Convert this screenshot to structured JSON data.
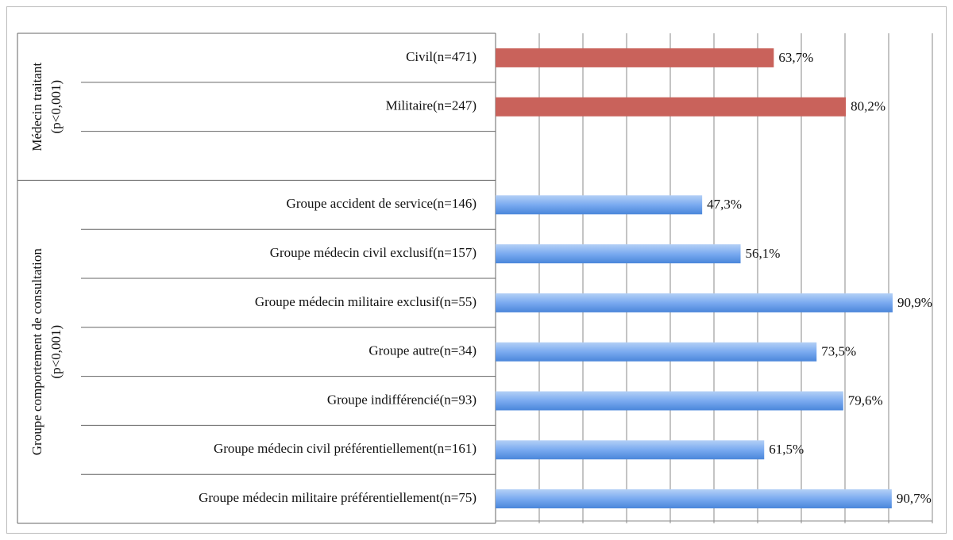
{
  "chart_data": {
    "type": "bar",
    "orientation": "horizontal",
    "categories": [
      "Civil(n=471)",
      "Militaire(n=247)",
      null,
      "Groupe accident de service(n=146)",
      "Groupe médecin civil exclusif(n=157)",
      "Groupe médecin militaire exclusif(n=55)",
      "Groupe autre(n=34)",
      "Groupe indifférencié(n=93)",
      "Groupe médecin civil préférentiellement(n=161)",
      "Groupe médecin militaire préférentiellement(n=75)"
    ],
    "values": [
      63.7,
      80.2,
      null,
      47.3,
      56.1,
      90.9,
      73.5,
      79.6,
      61.5,
      90.7
    ],
    "value_labels": [
      "63,7%",
      "80,2%",
      null,
      "47,3%",
      "56,1%",
      "90,9%",
      "73,5%",
      "79,6%",
      "61,5%",
      "90,7%"
    ],
    "colors": [
      "#c9625b",
      "#c9625b",
      null,
      "blue",
      "blue",
      "blue",
      "blue",
      "blue",
      "blue",
      "blue"
    ],
    "groups": [
      {
        "lines": [
          "Médecin traitant",
          "(p<0,001)"
        ],
        "size": 3
      },
      {
        "lines": [
          "Groupe comportement de consultation",
          "(p<0,001)"
        ],
        "size": 7
      }
    ],
    "xlim": [
      0,
      100
    ],
    "xticks": [
      0,
      10,
      20,
      30,
      40,
      50,
      60,
      70,
      80,
      90,
      100
    ],
    "grid": true
  }
}
